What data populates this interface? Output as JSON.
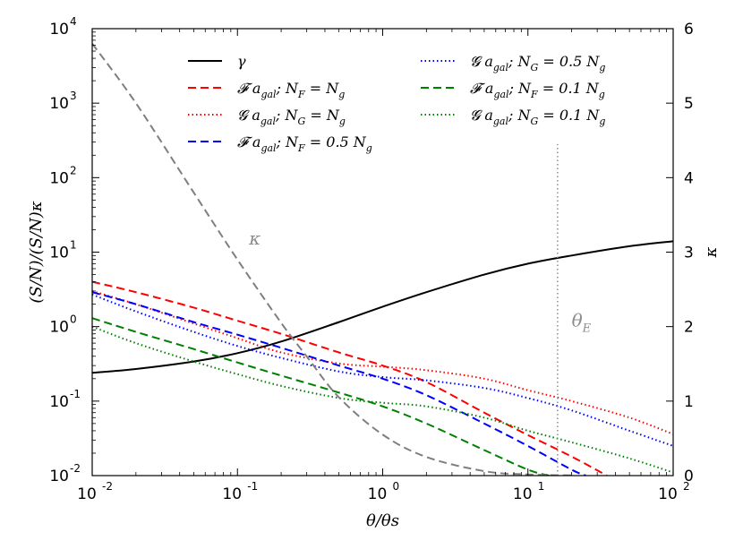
{
  "chart_data": {
    "type": "line",
    "title": "",
    "xlabel": "θ/θs",
    "ylabel_left": "(S/N)/(S/N)κ",
    "ylabel_right": "κ",
    "xscale": "log",
    "yscale_left": "log",
    "xlim": [
      0.01,
      100
    ],
    "ylim_left": [
      0.01,
      10000
    ],
    "ylim_right": [
      0,
      6
    ],
    "x_ticks": [
      {
        "value": 0.01,
        "base": "10",
        "exp": "-2"
      },
      {
        "value": 0.1,
        "base": "10",
        "exp": "-1"
      },
      {
        "value": 1,
        "base": "10",
        "exp": "0"
      },
      {
        "value": 10,
        "base": "10",
        "exp": "1"
      },
      {
        "value": 100,
        "base": "10",
        "exp": "2"
      }
    ],
    "y_left_ticks": [
      {
        "value": 0.01,
        "base": "10",
        "exp": "-2"
      },
      {
        "value": 0.1,
        "base": "10",
        "exp": "-1"
      },
      {
        "value": 1,
        "base": "10",
        "exp": "0"
      },
      {
        "value": 10,
        "base": "10",
        "exp": "1"
      },
      {
        "value": 100,
        "base": "10",
        "exp": "2"
      },
      {
        "value": 1000,
        "base": "10",
        "exp": "3"
      },
      {
        "value": 10000,
        "base": "10",
        "exp": "4"
      }
    ],
    "y_right_ticks": [
      "0",
      "1",
      "2",
      "3",
      "4",
      "5",
      "6"
    ],
    "legend": {
      "placement": "top",
      "columns": [
        [
          "gamma",
          "F_Ng",
          "G_Ng",
          "F_05"
        ],
        [
          "G_05",
          "F_01",
          "G_01"
        ]
      ]
    },
    "series": [
      {
        "id": "gamma",
        "name": "γ",
        "label_parts": [
          "γ"
        ],
        "color": "#000000",
        "dash": "solid",
        "axis": "left",
        "x": [
          0.01,
          0.02,
          0.05,
          0.1,
          0.2,
          0.5,
          1,
          2,
          5,
          10,
          20,
          50,
          100
        ],
        "y": [
          0.24,
          0.27,
          0.34,
          0.44,
          0.63,
          1.15,
          1.85,
          2.9,
          5.0,
          7.0,
          9.0,
          12.0,
          14.0
        ]
      },
      {
        "id": "F_Ng",
        "name": "F a_gal; N_F = N_g",
        "label_parts": [
          "𝓕 a",
          "gal",
          "; N",
          "F",
          " = N",
          "g",
          ""
        ],
        "color": "#ff0000",
        "dash": "dashed",
        "axis": "left",
        "x": [
          0.01,
          0.02,
          0.05,
          0.1,
          0.2,
          0.5,
          1,
          2,
          5,
          10,
          20,
          35
        ],
        "y": [
          4.0,
          2.9,
          1.8,
          1.2,
          0.8,
          0.45,
          0.3,
          0.18,
          0.07,
          0.035,
          0.018,
          0.01
        ]
      },
      {
        "id": "G_Ng",
        "name": "G a_gal; N_G = N_g",
        "label_parts": [
          "𝓖 a",
          "gal",
          "; N",
          "G",
          " = N",
          "g",
          ""
        ],
        "color": "#ff0000",
        "dash": "dotted",
        "axis": "left",
        "x": [
          0.01,
          0.02,
          0.05,
          0.1,
          0.2,
          0.5,
          1,
          2,
          5,
          10,
          20,
          50,
          100
        ],
        "y": [
          3.0,
          2.0,
          1.1,
          0.7,
          0.45,
          0.32,
          0.29,
          0.26,
          0.2,
          0.14,
          0.1,
          0.06,
          0.036
        ]
      },
      {
        "id": "F_05",
        "name": "F a_gal; N_F = 0.5 N_g",
        "label_parts": [
          "𝓕 a",
          "gal",
          "; N",
          "F",
          " = 0.5 N",
          "g",
          ""
        ],
        "color": "#0000ff",
        "dash": "dashed",
        "axis": "left",
        "x": [
          0.01,
          0.02,
          0.05,
          0.1,
          0.2,
          0.5,
          1,
          2,
          5,
          10,
          20,
          25
        ],
        "y": [
          2.9,
          2.0,
          1.15,
          0.78,
          0.52,
          0.3,
          0.2,
          0.12,
          0.05,
          0.025,
          0.012,
          0.01
        ]
      },
      {
        "id": "G_05",
        "name": "G a_gal; N_G = 0.5 N_g",
        "label_parts": [
          "𝓖 a",
          "gal",
          "; N",
          "G",
          " = 0.5 N",
          "g",
          ""
        ],
        "color": "#0000ff",
        "dash": "dotted",
        "axis": "left",
        "x": [
          0.01,
          0.02,
          0.05,
          0.1,
          0.2,
          0.5,
          1,
          2,
          5,
          10,
          20,
          50,
          100
        ],
        "y": [
          2.7,
          1.6,
          0.85,
          0.55,
          0.38,
          0.25,
          0.21,
          0.19,
          0.15,
          0.11,
          0.075,
          0.04,
          0.025
        ]
      },
      {
        "id": "F_01",
        "name": "F a_gal; N_F = 0.1 N_g",
        "label_parts": [
          "𝓕 a",
          "gal",
          "; N",
          "F",
          " = 0.1 N",
          "g",
          ""
        ],
        "color": "#008000",
        "dash": "dashed",
        "axis": "left",
        "x": [
          0.01,
          0.02,
          0.05,
          0.1,
          0.2,
          0.5,
          1,
          2,
          5,
          10,
          14
        ],
        "y": [
          1.3,
          0.85,
          0.5,
          0.33,
          0.22,
          0.13,
          0.085,
          0.05,
          0.022,
          0.012,
          0.01
        ]
      },
      {
        "id": "G_01",
        "name": "G a_gal; N_G = 0.1 N_g",
        "label_parts": [
          "𝓖 a",
          "gal",
          "; N",
          "G",
          " = 0.1 N",
          "g",
          ""
        ],
        "color": "#008000",
        "dash": "dotted",
        "axis": "left",
        "x": [
          0.01,
          0.02,
          0.05,
          0.1,
          0.2,
          0.5,
          1,
          2,
          5,
          10,
          20,
          50,
          100
        ],
        "y": [
          1.0,
          0.6,
          0.34,
          0.23,
          0.16,
          0.11,
          0.095,
          0.085,
          0.06,
          0.04,
          0.028,
          0.017,
          0.011
        ]
      },
      {
        "id": "kappa",
        "name": "κ",
        "label_parts": [
          "κ"
        ],
        "color": "#7f7f7f",
        "dash": "dashed",
        "axis": "right",
        "x": [
          0.01,
          0.02,
          0.05,
          0.1,
          0.2,
          0.3,
          0.5,
          1,
          2,
          5,
          10,
          20
        ],
        "y": [
          5.8,
          5.0,
          3.8,
          2.9,
          2.05,
          1.6,
          1.05,
          0.55,
          0.25,
          0.06,
          0.015,
          0.003
        ]
      }
    ],
    "annotations": [
      {
        "id": "kappa_label",
        "text": "κ",
        "x": 0.12,
        "y_right": 3.1
      },
      {
        "id": "thetaE_label",
        "text": "θ",
        "sub": "E",
        "x": 20,
        "y_right": 2.0
      }
    ],
    "vlines": [
      {
        "id": "theta_E",
        "x": 16,
        "y_right_from": 0,
        "y_right_to": 4.45,
        "color": "#8c8c8c",
        "dash": "dotted"
      }
    ]
  }
}
